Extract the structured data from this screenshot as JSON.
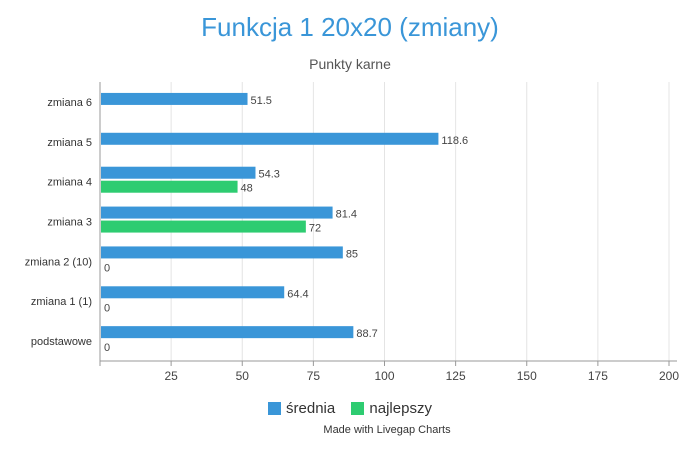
{
  "chart_data": {
    "type": "bar",
    "orientation": "horizontal",
    "title": "Funkcja 1 20x20 (zmiany)",
    "subtitle": "Punkty karne",
    "categories": [
      "zmiana 6",
      "zmiana 5",
      "zmiana 4",
      "zmiana 3",
      "zmiana 2 (10)",
      "zmiana 1 (1)",
      "podstawowe"
    ],
    "series": [
      {
        "name": "średnia",
        "color": "#3a96d8",
        "values": [
          51.5,
          118.6,
          54.3,
          81.4,
          85,
          64.4,
          88.7
        ]
      },
      {
        "name": "najlepszy",
        "color": "#2ecc71",
        "values": [
          null,
          null,
          48,
          72,
          0,
          0,
          0
        ]
      }
    ],
    "xlim": [
      0,
      200
    ],
    "xticks": [
      25,
      50,
      75,
      100,
      125,
      150,
      175,
      200
    ],
    "grid": true,
    "legend_position": "bottom"
  },
  "credit": "Made with Livegap Charts"
}
